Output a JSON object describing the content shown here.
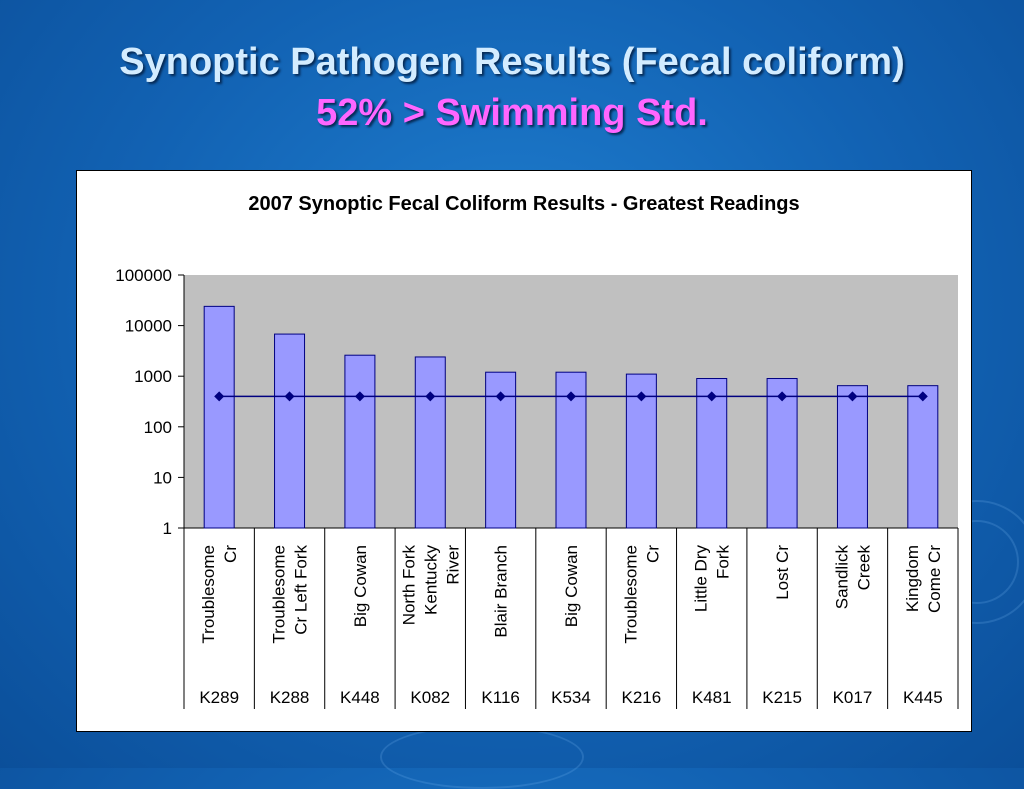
{
  "slide": {
    "title": "Synoptic Pathogen Results (Fecal coliform)",
    "subtitle": "52% > Swimming Std."
  },
  "colors": {
    "bar_fill": "#9999ff",
    "bar_stroke": "#000080",
    "plot_bg": "#c0c0c0",
    "line": "#000080",
    "title": "#d3ecff",
    "subtitle": "#ff66ff"
  },
  "chart_data": {
    "type": "bar",
    "title": "2007 Synoptic Fecal Coliform Results - Greatest Readings",
    "xlabel": "",
    "ylabel": "",
    "yscale": "log",
    "ylim": [
      1,
      100000
    ],
    "yticks": [
      "1",
      "10",
      "100",
      "1000",
      "10000",
      "100000"
    ],
    "grid": false,
    "categories": [
      {
        "name": [
          "Troublesome",
          "Cr"
        ],
        "code": "K289"
      },
      {
        "name": [
          "Troublesome",
          "Cr Left Fork"
        ],
        "code": "K288"
      },
      {
        "name": [
          "Big Cowan"
        ],
        "code": "K448"
      },
      {
        "name": [
          "North Fork",
          "Kentucky",
          "River"
        ],
        "code": "K082"
      },
      {
        "name": [
          "Blair Branch"
        ],
        "code": "K116"
      },
      {
        "name": [
          "Big Cowan"
        ],
        "code": "K534"
      },
      {
        "name": [
          "Troublesome",
          "Cr"
        ],
        "code": "K216"
      },
      {
        "name": [
          "Little Dry",
          "Fork"
        ],
        "code": "K481"
      },
      {
        "name": [
          "Lost Cr"
        ],
        "code": "K215"
      },
      {
        "name": [
          "Sandlick",
          "Creek"
        ],
        "code": "K017"
      },
      {
        "name": [
          "Kingdom",
          "Come Cr"
        ],
        "code": "K445"
      }
    ],
    "series": [
      {
        "type": "bar",
        "values": [
          24000,
          6800,
          2600,
          2400,
          1200,
          1200,
          1100,
          900,
          900,
          650,
          650
        ]
      },
      {
        "type": "line",
        "values": [
          400,
          400,
          400,
          400,
          400,
          400,
          400,
          400,
          400,
          400,
          400
        ]
      }
    ]
  }
}
